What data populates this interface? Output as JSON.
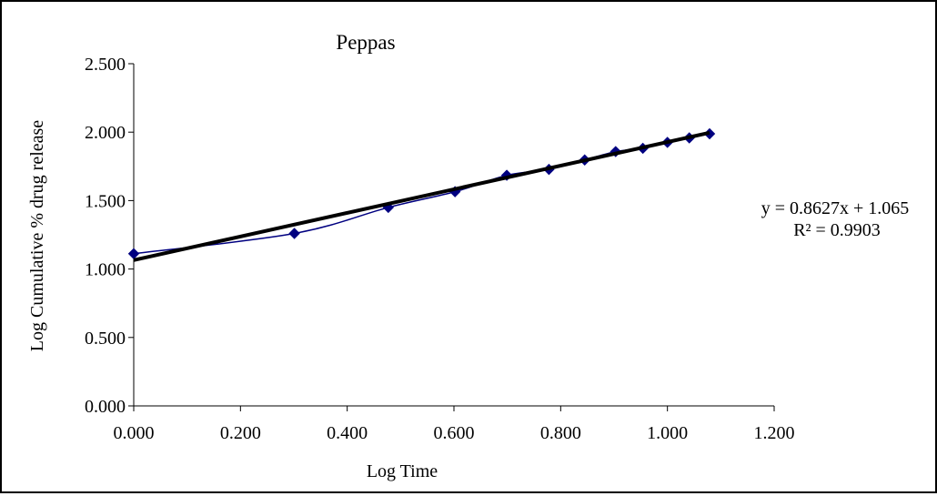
{
  "chart_data": {
    "type": "scatter",
    "title": "Peppas",
    "xlabel": "Log Time",
    "ylabel": "Log Cumulative % drug release",
    "xlim": [
      0,
      1.2
    ],
    "ylim": [
      0,
      2.5
    ],
    "x_ticks": [
      "0.000",
      "0.200",
      "0.400",
      "0.600",
      "0.800",
      "1.000",
      "1.200"
    ],
    "y_ticks": [
      "0.000",
      "0.500",
      "1.000",
      "1.500",
      "2.000",
      "2.500"
    ],
    "grid": false,
    "series": [
      {
        "points": [
          [
            0.0,
            1.112
          ],
          [
            0.301,
            1.26
          ],
          [
            0.477,
            1.45
          ],
          [
            0.602,
            1.565
          ],
          [
            0.699,
            1.685
          ],
          [
            0.778,
            1.728
          ],
          [
            0.845,
            1.797
          ],
          [
            0.903,
            1.858
          ],
          [
            0.954,
            1.882
          ],
          [
            1.0,
            1.925
          ],
          [
            1.041,
            1.958
          ],
          [
            1.079,
            1.988
          ]
        ],
        "marker": "diamond",
        "line": "smooth",
        "color": "#000080"
      }
    ],
    "trendline": {
      "type": "linear",
      "slope": 0.8627,
      "intercept": 1.065,
      "x_range": [
        0,
        1.079
      ],
      "color": "#000000",
      "equation_label": "y = 0.8627x + 1.065",
      "r2_label": "R² = 0.9903"
    }
  }
}
